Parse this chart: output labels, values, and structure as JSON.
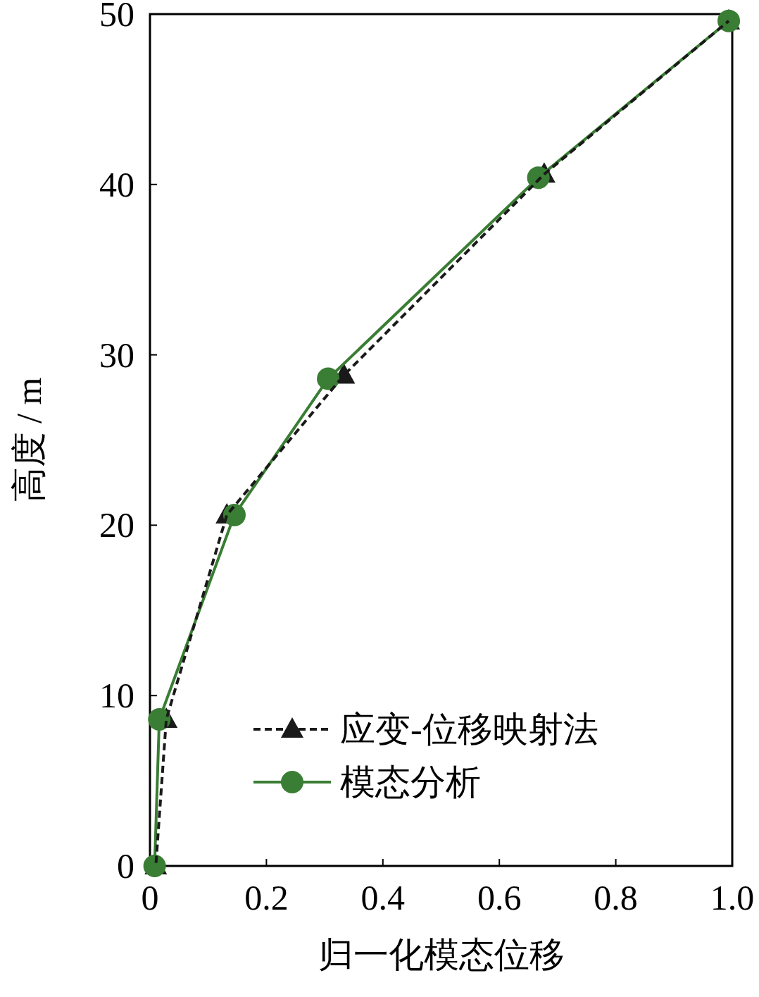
{
  "chart_data": {
    "type": "line",
    "xlabel": "归一化模态位移",
    "ylabel": "高度 / m",
    "xlim": [
      0,
      1
    ],
    "ylim": [
      0,
      50
    ],
    "xticks": [
      0,
      0.2,
      0.4,
      0.6,
      0.8,
      {
        "value": 1,
        "label": "1.0"
      }
    ],
    "yticks": [
      0,
      10,
      20,
      30,
      40,
      50
    ],
    "legend": "bottom right",
    "series": [
      {
        "name": "应变-位移映射法",
        "color": "#1a1a1a",
        "marker": "triangle",
        "line_style": "dashed",
        "x": [
          0.01,
          0.028,
          0.132,
          0.333,
          0.677,
          0.994
        ],
        "values": [
          0,
          8.6,
          20.6,
          28.8,
          40.6,
          49.6
        ]
      },
      {
        "name": "模态分析",
        "color": "#3a7d34",
        "marker": "circle",
        "line_style": "solid",
        "x": [
          0.008,
          0.016,
          0.145,
          0.306,
          0.667,
          0.994
        ],
        "values": [
          0,
          8.6,
          20.6,
          28.6,
          40.4,
          49.6
        ]
      }
    ]
  }
}
